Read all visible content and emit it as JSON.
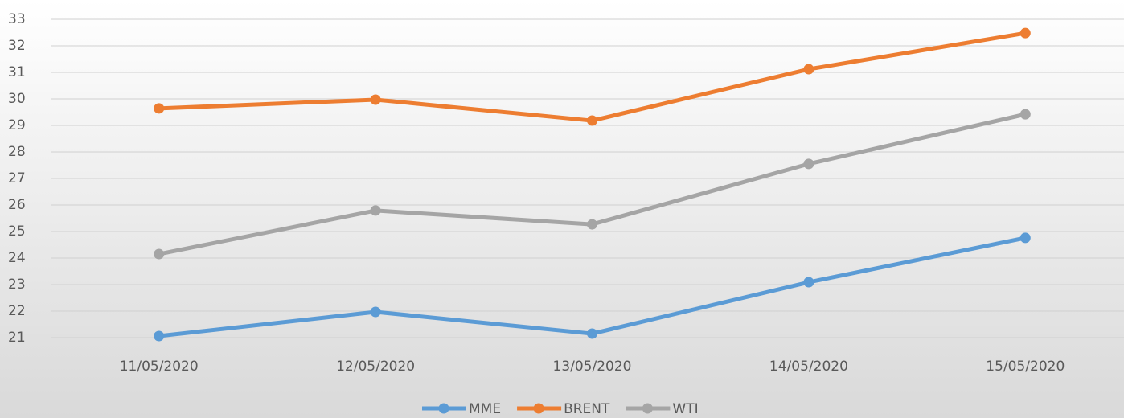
{
  "chart_data": {
    "type": "line",
    "categories": [
      "11/05/2020",
      "12/05/2020",
      "13/05/2020",
      "14/05/2020",
      "15/05/2020"
    ],
    "series": [
      {
        "name": "MME",
        "color": "#5b9bd5",
        "values": [
          21.06,
          21.97,
          21.15,
          23.09,
          24.76
        ]
      },
      {
        "name": "BRENT",
        "color": "#ed7d31",
        "values": [
          29.64,
          29.97,
          29.18,
          31.12,
          32.48
        ]
      },
      {
        "name": "WTI",
        "color": "#a5a5a5",
        "values": [
          24.15,
          25.79,
          25.27,
          27.55,
          29.42
        ]
      }
    ],
    "ylim": [
      21,
      33
    ],
    "yticks": [
      21,
      22,
      23,
      24,
      25,
      26,
      27,
      28,
      29,
      30,
      31,
      32,
      33
    ],
    "grid": true,
    "legend": "bottom"
  }
}
